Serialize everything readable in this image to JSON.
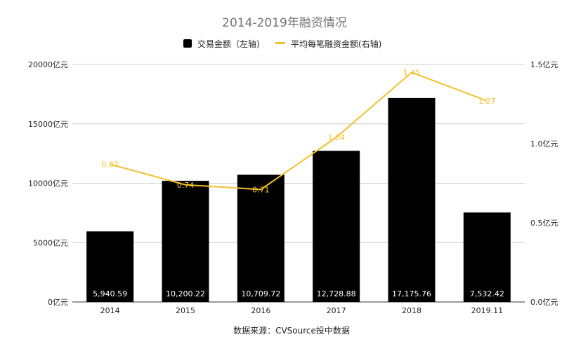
{
  "chart_data": {
    "type": "bar",
    "title": "2014-2019年融资情况",
    "categories": [
      "2014",
      "2015",
      "2016",
      "2017",
      "2018",
      "2019.11"
    ],
    "series": [
      {
        "name": "交易金额（左轴)",
        "type": "bar",
        "axis": "left",
        "color": "#000000",
        "values": [
          5940.59,
          10200.22,
          10709.72,
          12728.88,
          17175.76,
          7532.42
        ],
        "labels": [
          "5,940.59",
          "10,200.22",
          "10,709.72",
          "12,728.88",
          "17,175.76",
          "7,532.42"
        ]
      },
      {
        "name": "平均每笔融资金额(右轴)",
        "type": "line",
        "axis": "right",
        "color": "#f2c12e",
        "values": [
          0.87,
          0.74,
          0.71,
          1.04,
          1.45,
          1.27
        ],
        "labels": [
          "0.87",
          "0.74",
          "0.71",
          "1.04",
          "1.45",
          "1.27"
        ]
      }
    ],
    "y_left": {
      "ylim": [
        0,
        20000
      ],
      "ticks": [
        0,
        5000,
        10000,
        15000,
        20000
      ],
      "tick_labels": [
        "0亿元",
        "5000亿元",
        "10000亿元",
        "15000亿元",
        "20000亿元"
      ]
    },
    "y_right": {
      "ylim": [
        0,
        1.5
      ],
      "ticks": [
        0,
        0.5,
        1.0,
        1.5
      ],
      "tick_labels": [
        "0.0亿元",
        "0.5亿元",
        "1.0亿元",
        "1.5亿元"
      ]
    },
    "grid": true,
    "legend_position": "top-center",
    "source_note": "数据来源：CVSource投中数据"
  }
}
